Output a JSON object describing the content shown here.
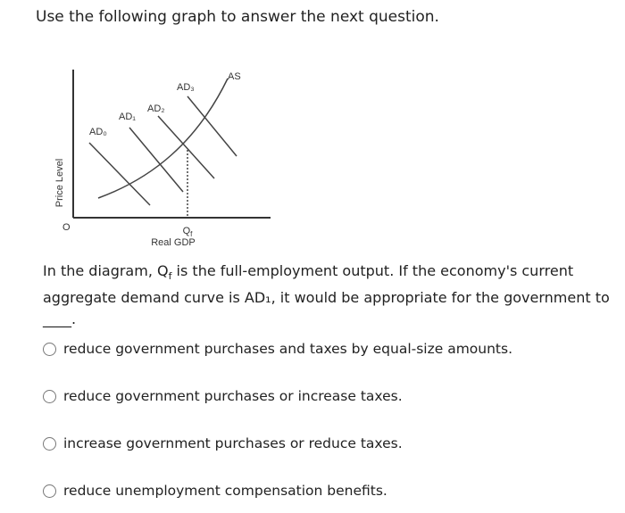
{
  "header": {
    "title": "Use the following graph to answer the next question."
  },
  "diagram": {
    "y_axis_label": "Price Level",
    "origin_label": "O",
    "x_axis_label": "Real GDP",
    "qf_label": {
      "base": "Q",
      "sub": "f"
    },
    "curves": [
      "AD₀",
      "AD₁",
      "AD₂",
      "AD₃",
      "AS"
    ]
  },
  "question": {
    "parts": [
      "In the diagram, Q",
      "f",
      " is the full-employment output. If the economy's current aggregate demand curve is AD₁, it would be appropriate for the government to ____."
    ]
  },
  "options": [
    "reduce government purchases and taxes by equal-size amounts.",
    "reduce government purchases or increase taxes.",
    "increase government purchases or reduce taxes.",
    "reduce unemployment compensation benefits."
  ]
}
